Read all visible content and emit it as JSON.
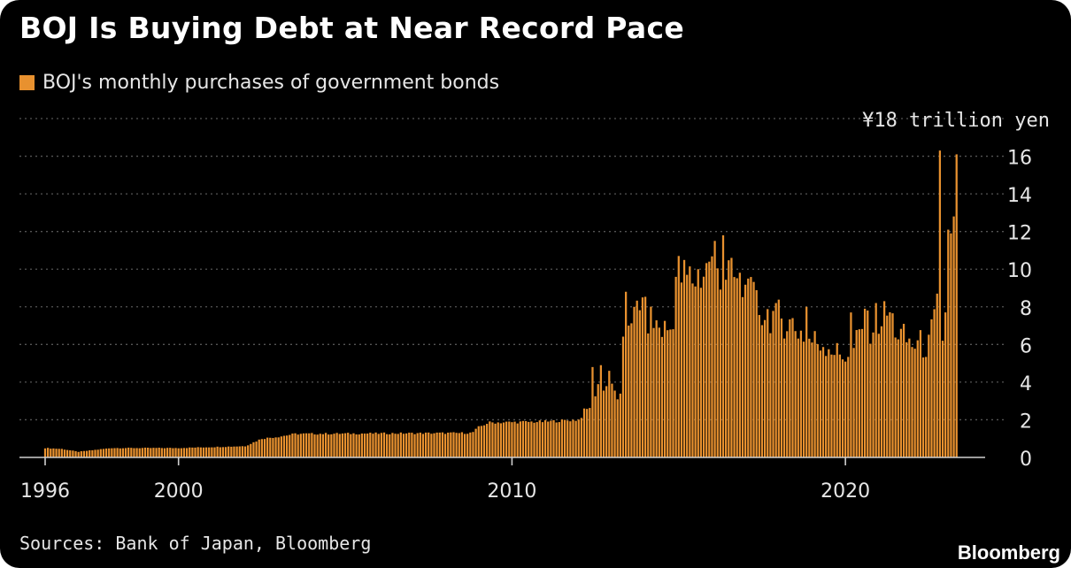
{
  "colors": {
    "background": "#000000",
    "bar": "#e8912f",
    "text": "#e6e6e6",
    "grid": "#555555"
  },
  "footer": {
    "source": "Sources: Bank of Japan, Bloomberg",
    "brand": "Bloomberg"
  },
  "chart_data": {
    "type": "bar",
    "title": "BOJ Is Buying Debt at Near Record Pace",
    "legend": "BOJ's monthly purchases of government bonds",
    "y_unit_label": "¥18 trillion yen",
    "ylim": [
      0,
      18
    ],
    "y_ticks": [
      0,
      2,
      4,
      6,
      8,
      10,
      12,
      14,
      16
    ],
    "y_axis_position": "right",
    "grid": "dotted horizontal",
    "legend_position": "top-left",
    "xlim": [
      1996.0,
      2023.5
    ],
    "x_ticks": [
      {
        "value": 1996,
        "label": "1996"
      },
      {
        "value": 2000,
        "label": "2000"
      },
      {
        "value": 2010,
        "label": "2010"
      },
      {
        "value": 2020,
        "label": "2020"
      }
    ],
    "anchors": [
      [
        1996.0,
        0.5
      ],
      [
        1996.5,
        0.45
      ],
      [
        1997.0,
        0.3
      ],
      [
        1997.5,
        0.4
      ],
      [
        1998.0,
        0.5
      ],
      [
        2000.0,
        0.5
      ],
      [
        2002.0,
        0.6
      ],
      [
        2002.5,
        1.0
      ],
      [
        2003.0,
        1.1
      ],
      [
        2003.5,
        1.25
      ],
      [
        2008.8,
        1.3
      ],
      [
        2009.0,
        1.6
      ],
      [
        2009.3,
        1.85
      ],
      [
        2011.0,
        1.9
      ],
      [
        2012.0,
        2.0
      ],
      [
        2012.3,
        2.6
      ],
      [
        2012.6,
        4.0
      ],
      [
        2013.0,
        3.6
      ],
      [
        2013.3,
        3.0
      ],
      [
        2013.35,
        7.0
      ],
      [
        2013.6,
        7.8
      ],
      [
        2014.0,
        7.5
      ],
      [
        2014.5,
        6.8
      ],
      [
        2014.8,
        6.8
      ],
      [
        2014.9,
        9.6
      ],
      [
        2015.5,
        9.5
      ],
      [
        2016.0,
        10.2
      ],
      [
        2016.5,
        9.8
      ],
      [
        2017.0,
        8.8
      ],
      [
        2017.5,
        7.7
      ],
      [
        2018.0,
        7.5
      ],
      [
        2018.5,
        6.9
      ],
      [
        2019.0,
        6.2
      ],
      [
        2019.5,
        6.0
      ],
      [
        2019.8,
        5.4
      ],
      [
        2020.2,
        5.6
      ],
      [
        2020.5,
        6.7
      ],
      [
        2020.8,
        7.0
      ],
      [
        2021.1,
        7.4
      ],
      [
        2021.3,
        7.7
      ],
      [
        2021.6,
        6.5
      ],
      [
        2022.0,
        6.0
      ],
      [
        2022.3,
        6.0
      ],
      [
        2022.5,
        5.9
      ],
      [
        2022.7,
        7.5
      ],
      [
        2023.0,
        7.5
      ]
    ],
    "spikes": [
      [
        2012.4,
        4.8
      ],
      [
        2012.7,
        4.9
      ],
      [
        2012.95,
        4.6
      ],
      [
        2013.4,
        8.8
      ],
      [
        2013.7,
        8.0
      ],
      [
        2013.9,
        8.5
      ],
      [
        2015.0,
        10.7
      ],
      [
        2015.6,
        10.0
      ],
      [
        2015.95,
        10.4
      ],
      [
        2016.1,
        11.5
      ],
      [
        2016.35,
        11.8
      ],
      [
        2016.6,
        10.6
      ],
      [
        2017.1,
        9.5
      ],
      [
        2017.9,
        8.2
      ],
      [
        2018.4,
        7.4
      ],
      [
        2018.8,
        8.0
      ],
      [
        2020.2,
        7.7
      ],
      [
        2020.6,
        7.9
      ],
      [
        2020.95,
        8.2
      ],
      [
        2021.15,
        8.3
      ],
      [
        2022.75,
        8.7
      ],
      [
        2022.85,
        16.3
      ],
      [
        2022.95,
        6.2
      ],
      [
        2023.05,
        12.1
      ],
      [
        2023.15,
        11.9
      ],
      [
        2023.25,
        12.8
      ],
      [
        2023.35,
        16.1
      ]
    ]
  }
}
